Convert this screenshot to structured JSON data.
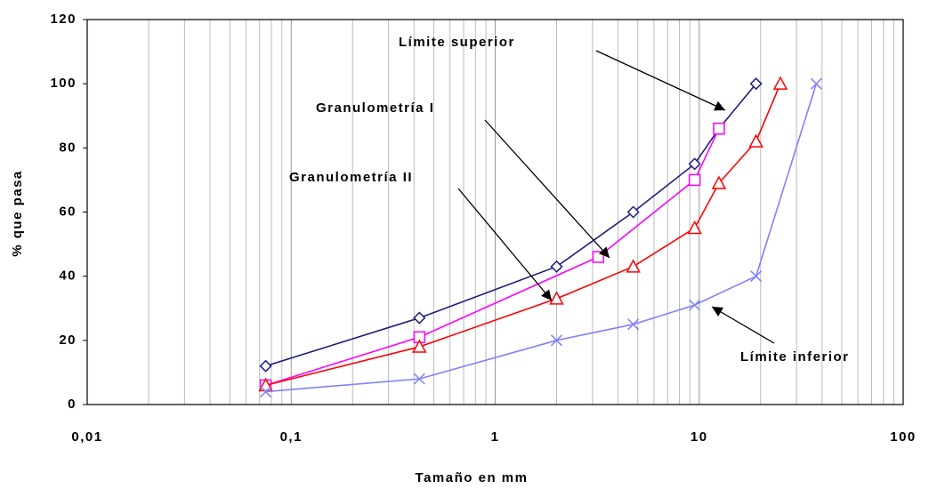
{
  "chart_data": {
    "type": "line",
    "xlabel": "Tamaño en mm",
    "ylabel": "% que pasa",
    "xscale": "log",
    "xlim": [
      0.01,
      100
    ],
    "xticks": [
      {
        "value": 0.01,
        "label": "0,01"
      },
      {
        "value": 0.1,
        "label": "0,1"
      },
      1,
      10,
      100
    ],
    "ylim": [
      0,
      120
    ],
    "yticks": [
      0,
      20,
      40,
      60,
      80,
      100,
      120
    ],
    "grid": "x",
    "series": [
      {
        "name": "Límite superior",
        "color": "#1f1f7a",
        "marker": "diamond",
        "x": [
          0.075,
          0.425,
          2,
          4.75,
          9.5,
          12.5,
          19
        ],
        "values": [
          12,
          27,
          43,
          60,
          75,
          86,
          100
        ]
      },
      {
        "name": "Granulometría I",
        "color": "#ff00ff",
        "marker": "square",
        "x": [
          0.075,
          0.425,
          3.2,
          9.5,
          12.5
        ],
        "values": [
          6,
          21,
          46,
          70,
          86
        ]
      },
      {
        "name": "Granulometría II",
        "color": "#ff0000",
        "marker": "triangle",
        "x": [
          0.075,
          0.425,
          2,
          4.75,
          9.5,
          12.5,
          19,
          25
        ],
        "values": [
          6,
          18,
          33,
          43,
          55,
          69,
          82,
          100
        ]
      },
      {
        "name": "Límite inferior",
        "color": "#8080ff",
        "marker": "x",
        "x": [
          0.075,
          0.425,
          2,
          4.75,
          9.5,
          19,
          37.5
        ],
        "values": [
          4,
          8,
          20,
          25,
          31,
          40,
          100
        ]
      }
    ]
  }
}
